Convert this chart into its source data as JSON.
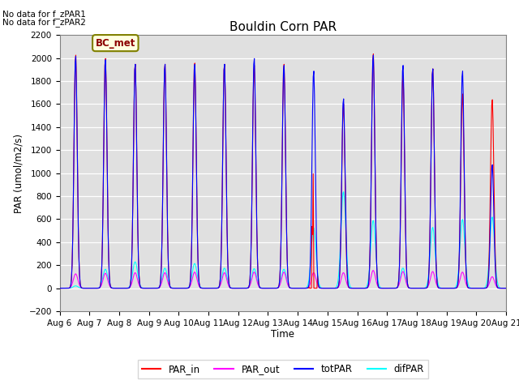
{
  "title": "Bouldin Corn PAR",
  "ylabel": "PAR (umol/m2/s)",
  "xlabel": "Time",
  "ylim": [
    -200,
    2200
  ],
  "yticks": [
    -200,
    0,
    200,
    400,
    600,
    800,
    1000,
    1200,
    1400,
    1600,
    1800,
    2000,
    2200
  ],
  "xlim_start": 6,
  "xlim_end": 21,
  "xtick_labels": [
    "Aug 6",
    "Aug 7",
    "Aug 8",
    "Aug 9",
    "Aug 10",
    "Aug 11",
    "Aug 12",
    "Aug 13",
    "Aug 14",
    "Aug 15",
    "Aug 16",
    "Aug 17",
    "Aug 18",
    "Aug 19",
    "Aug 20",
    "Aug 21"
  ],
  "bg_color": "#e0e0e0",
  "legend_label_bc_met": "BC_met",
  "no_data_text": [
    "No data for f_zPAR1",
    "No data for f_zPAR2"
  ],
  "totPAR_peaks": [
    2030,
    2000,
    1960,
    1960,
    1960,
    1960,
    2010,
    1950,
    1900,
    1950,
    2040,
    1950,
    1920,
    1900,
    1080
  ],
  "PAR_in_peaks": [
    2040,
    2010,
    1960,
    1960,
    1970,
    1960,
    1950,
    1960,
    1870,
    1610,
    2050,
    1860,
    1920,
    1700,
    1650
  ],
  "difPAR_peaks": [
    20,
    165,
    230,
    175,
    215,
    175,
    170,
    165,
    525,
    840,
    590,
    175,
    530,
    600,
    620
  ],
  "PAR_out_peaks": [
    125,
    130,
    135,
    135,
    140,
    135,
    140,
    140,
    135,
    135,
    155,
    145,
    145,
    140,
    100
  ]
}
